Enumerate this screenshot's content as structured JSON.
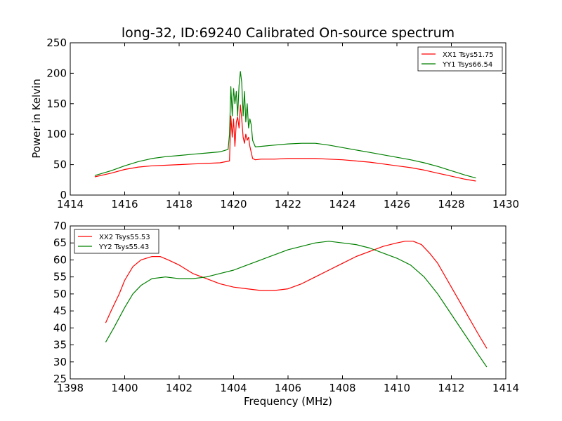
{
  "chart_data": [
    {
      "type": "line",
      "title": "long-32, ID:69240 Calibrated On-source spectrum",
      "xlabel": "",
      "ylabel": "Power in Kelvin",
      "xlim": [
        1414,
        1430
      ],
      "ylim": [
        0,
        250
      ],
      "xticks": [
        1414,
        1416,
        1418,
        1420,
        1422,
        1424,
        1426,
        1428,
        1430
      ],
      "yticks": [
        0,
        50,
        100,
        150,
        200,
        250
      ],
      "legend_position": "top-right",
      "grid": false,
      "series": [
        {
          "name": "XX1 Tsys51.75",
          "color": "#ff0000",
          "x": [
            1414.9,
            1415.5,
            1416,
            1416.5,
            1417,
            1417.5,
            1418,
            1418.5,
            1419,
            1419.5,
            1419.85,
            1419.9,
            1419.95,
            1420.0,
            1420.05,
            1420.1,
            1420.15,
            1420.2,
            1420.25,
            1420.3,
            1420.35,
            1420.4,
            1420.45,
            1420.5,
            1420.55,
            1420.6,
            1420.7,
            1420.8,
            1421.0,
            1421.5,
            1422,
            1422.5,
            1423,
            1423.5,
            1424,
            1424.5,
            1425,
            1425.5,
            1426,
            1426.5,
            1427,
            1427.5,
            1428,
            1428.5,
            1428.9
          ],
          "y": [
            30,
            36,
            42,
            46,
            48,
            49,
            50,
            51,
            52,
            53,
            56,
            130,
            95,
            125,
            80,
            120,
            128,
            110,
            148,
            125,
            95,
            85,
            100,
            90,
            95,
            80,
            60,
            58,
            59,
            59,
            60,
            60,
            60,
            59,
            58,
            56,
            54,
            51,
            48,
            45,
            41,
            36,
            31,
            26,
            23
          ]
        },
        {
          "name": "YY1 Tsys66.54",
          "color": "#008000",
          "x": [
            1414.9,
            1415.5,
            1416,
            1416.5,
            1417,
            1417.5,
            1418,
            1418.5,
            1419,
            1419.5,
            1419.8,
            1419.85,
            1419.9,
            1419.95,
            1420.0,
            1420.05,
            1420.1,
            1420.15,
            1420.2,
            1420.25,
            1420.3,
            1420.35,
            1420.4,
            1420.45,
            1420.5,
            1420.55,
            1420.6,
            1420.65,
            1420.7,
            1420.8,
            1421.0,
            1421.5,
            1422,
            1422.5,
            1423,
            1423.5,
            1424,
            1424.5,
            1425,
            1425.5,
            1426,
            1426.5,
            1427,
            1427.5,
            1428,
            1428.5,
            1428.9
          ],
          "y": [
            32,
            40,
            48,
            55,
            60,
            63,
            65,
            67,
            69,
            71,
            75,
            100,
            178,
            130,
            175,
            150,
            170,
            130,
            180,
            203,
            185,
            130,
            170,
            120,
            150,
            110,
            125,
            115,
            90,
            79,
            80,
            82,
            84,
            85,
            85,
            82,
            78,
            74,
            70,
            66,
            62,
            58,
            53,
            47,
            40,
            33,
            28
          ]
        }
      ]
    },
    {
      "type": "line",
      "title": "",
      "xlabel": "Frequency (MHz)",
      "ylabel": "",
      "xlim": [
        1398,
        1414
      ],
      "ylim": [
        25,
        70
      ],
      "xticks": [
        1398,
        1400,
        1402,
        1404,
        1406,
        1408,
        1410,
        1412,
        1414
      ],
      "yticks": [
        25,
        30,
        35,
        40,
        45,
        50,
        55,
        60,
        65,
        70
      ],
      "legend_position": "top-left",
      "grid": false,
      "series": [
        {
          "name": "XX2 Tsys55.53",
          "color": "#ff0000",
          "x": [
            1399.3,
            1399.5,
            1399.8,
            1400,
            1400.3,
            1400.6,
            1401,
            1401.3,
            1401.6,
            1402,
            1402.5,
            1403,
            1403.5,
            1404,
            1404.5,
            1405,
            1405.5,
            1406,
            1406.5,
            1407,
            1407.5,
            1408,
            1408.5,
            1409,
            1409.5,
            1410,
            1410.3,
            1410.6,
            1410.9,
            1411.2,
            1411.5,
            1412,
            1412.5,
            1413,
            1413.3
          ],
          "y": [
            41.5,
            45,
            50,
            54,
            58,
            60,
            61,
            61,
            60,
            58.5,
            56,
            54.5,
            53,
            52,
            51.5,
            51,
            51,
            51.5,
            53,
            55,
            57,
            59,
            61,
            62.5,
            64,
            65,
            65.5,
            65.5,
            64.5,
            62,
            59,
            52,
            45,
            38,
            34
          ]
        },
        {
          "name": "YY2 Tsys55.43",
          "color": "#008000",
          "x": [
            1399.3,
            1399.6,
            1400,
            1400.3,
            1400.6,
            1401,
            1401.5,
            1402,
            1402.5,
            1403,
            1403.5,
            1404,
            1404.5,
            1405,
            1405.5,
            1406,
            1406.5,
            1407,
            1407.5,
            1408,
            1408.5,
            1409,
            1409.5,
            1410,
            1410.5,
            1411,
            1411.5,
            1412,
            1412.5,
            1413,
            1413.3
          ],
          "y": [
            35.8,
            40,
            46,
            50,
            52.5,
            54.5,
            55,
            54.5,
            54.5,
            55,
            56,
            57,
            58.5,
            60,
            61.5,
            63,
            64,
            65,
            65.5,
            65,
            64.5,
            63.5,
            62,
            60.5,
            58.5,
            55,
            50,
            44,
            38,
            32,
            28.5
          ]
        }
      ]
    }
  ]
}
